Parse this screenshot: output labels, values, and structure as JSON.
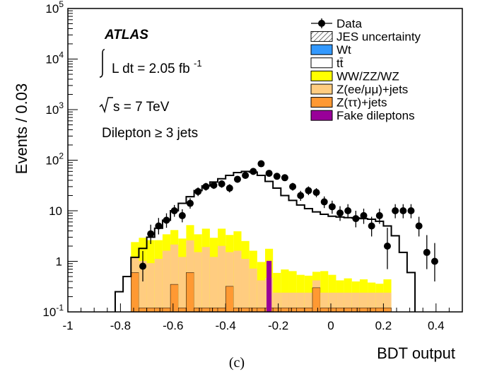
{
  "chart_data": {
    "type": "bar",
    "xlabel": "BDT output",
    "ylabel": "Events / 0.03",
    "yscale": "log",
    "xlim": [
      -1,
      0.5
    ],
    "ylim": [
      0.1,
      100000
    ],
    "xticks": [
      "-1",
      "-0.8",
      "-0.6",
      "-0.4",
      "-0.2",
      "0",
      "0.2",
      "0.4"
    ],
    "yticks": [
      {
        "base": "10",
        "exp": "-1"
      },
      {
        "base": "1",
        "exp": ""
      },
      {
        "base": "10",
        "exp": ""
      },
      {
        "base": "10",
        "exp": "2"
      },
      {
        "base": "10",
        "exp": "3"
      },
      {
        "base": "10",
        "exp": "4"
      },
      {
        "base": "10",
        "exp": "5"
      }
    ],
    "annotations": {
      "experiment": "ATLAS",
      "lumi_label": "L dt = 2.05 fb",
      "lumi_exp": "-1",
      "energy": "s = 7 TeV",
      "selection": "Dilepton ≥ 3 jets",
      "panel": "(c)"
    },
    "legend": {
      "position": "top-right",
      "entries": [
        {
          "key": "data",
          "label": "Data",
          "style": "marker",
          "color": "#000000"
        },
        {
          "key": "jes",
          "label": "JES uncertainty",
          "style": "hatch",
          "color": "#000000"
        },
        {
          "key": "wt",
          "label": "Wt",
          "style": "fill",
          "color": "#3399ff"
        },
        {
          "key": "tt",
          "label": "tt̄",
          "style": "fill",
          "color": "#ffffff"
        },
        {
          "key": "diboson",
          "label": "WW/ZZ/WZ",
          "style": "fill",
          "color": "#ffff00"
        },
        {
          "key": "zll",
          "label": "Z(ee/μμ)+jets",
          "style": "fill",
          "color": "#ffcc80"
        },
        {
          "key": "ztautau",
          "label": "Z(ττ)+jets",
          "style": "fill",
          "color": "#ff9933"
        },
        {
          "key": "fake",
          "label": "Fake dileptons",
          "style": "fill",
          "color": "#990099"
        }
      ]
    },
    "bin_width": 0.03,
    "bins_low_edges": [
      -0.82,
      -0.79,
      -0.76,
      -0.73,
      -0.7,
      -0.67,
      -0.64,
      -0.61,
      -0.58,
      -0.55,
      -0.52,
      -0.49,
      -0.46,
      -0.43,
      -0.4,
      -0.37,
      -0.34,
      -0.31,
      -0.28,
      -0.25,
      -0.22,
      -0.19,
      -0.16,
      -0.13,
      -0.1,
      -0.07,
      -0.04,
      -0.01,
      0.02,
      0.05,
      0.08,
      0.11,
      0.14,
      0.17,
      0.2,
      0.23,
      0.26,
      0.29
    ],
    "series": [
      {
        "key": "total",
        "name": "tt̄",
        "values": [
          0.25,
          0.5,
          1.2,
          1.8,
          3.0,
          4.5,
          6.5,
          10,
          14,
          19,
          25,
          31,
          37,
          43,
          50,
          57,
          60,
          58,
          50,
          38,
          28,
          20,
          16,
          13,
          11,
          9.5,
          8.5,
          7.8,
          7.5,
          7.3,
          7.2,
          7.0,
          6.8,
          6.2,
          5.0,
          3.2,
          1.5,
          0.6
        ]
      },
      {
        "key": "diboson",
        "name": "WW/ZZ/WZ",
        "values": [
          0,
          0,
          1.2,
          1.9,
          1.7,
          1.5,
          1.8,
          2.0,
          1.6,
          2.6,
          1.9,
          2.5,
          1.7,
          2.4,
          1.8,
          2.3,
          1.4,
          0.9,
          0.55,
          0.75,
          0.35,
          0.45,
          0.4,
          0.3,
          0.28,
          0.2,
          0.4,
          0.3,
          0.18,
          0.22,
          0.16,
          0.2,
          0.14,
          0.12,
          0.2,
          0,
          0,
          0
        ]
      },
      {
        "key": "zll",
        "name": "Z(ee/μμ)+jets",
        "values": [
          0,
          0,
          0.6,
          0.9,
          0.8,
          1.0,
          1.5,
          1.8,
          1.1,
          2.0,
          1.4,
          1.8,
          1.1,
          1.9,
          1.2,
          1.5,
          1.0,
          0.6,
          0.3,
          0.35,
          0.12,
          0.12,
          0.12,
          0.12,
          0.12,
          0.12,
          0.12,
          0.12,
          0.12,
          0.12,
          0.12,
          0.12,
          0.12,
          0.12,
          0.12,
          0,
          0,
          0
        ]
      },
      {
        "key": "ztautau",
        "name": "Z(ττ)+jets",
        "values": [
          0,
          0,
          0.6,
          0.12,
          0.12,
          0.12,
          0.12,
          0.35,
          0.12,
          0.6,
          0.12,
          0.12,
          0.12,
          0.12,
          0.32,
          0.12,
          0.12,
          0.12,
          0.12,
          0.12,
          0.12,
          0.12,
          0.12,
          0.12,
          0.12,
          0.3,
          0.12,
          0.12,
          0.12,
          0.12,
          0.12,
          0.12,
          0.12,
          0.12,
          0.12,
          0,
          0,
          0
        ]
      },
      {
        "key": "fake",
        "name": "Fake dileptons",
        "values": [
          0,
          0,
          0,
          0,
          0,
          0,
          0,
          0,
          0,
          0,
          0,
          0,
          0,
          0,
          0,
          0,
          0,
          0,
          0,
          0.55,
          0,
          0,
          0,
          0,
          0,
          0,
          0,
          0,
          0,
          0,
          0,
          0,
          0,
          0,
          0,
          0,
          0,
          0
        ]
      },
      {
        "key": "data",
        "name": "Data",
        "points": [
          {
            "x": -0.715,
            "y": 0.8,
            "lo": 0.4,
            "hi": 1.6
          },
          {
            "x": -0.685,
            "y": 3.5,
            "lo": 2.2,
            "hi": 5.3
          },
          {
            "x": -0.655,
            "y": 5.0,
            "lo": 3.4,
            "hi": 7.2
          },
          {
            "x": -0.625,
            "y": 6.5,
            "lo": 4.6,
            "hi": 8.9
          },
          {
            "x": -0.595,
            "y": 10,
            "lo": 7.6,
            "hi": 13
          },
          {
            "x": -0.565,
            "y": 8,
            "lo": 5.9,
            "hi": 10.7
          },
          {
            "x": -0.535,
            "y": 14,
            "lo": 11,
            "hi": 17.7
          },
          {
            "x": -0.505,
            "y": 24,
            "lo": 19.5,
            "hi": 29
          },
          {
            "x": -0.475,
            "y": 30,
            "lo": 25,
            "hi": 35.6
          },
          {
            "x": -0.445,
            "y": 32,
            "lo": 27,
            "hi": 37.7
          },
          {
            "x": -0.415,
            "y": 34,
            "lo": 28.5,
            "hi": 40
          },
          {
            "x": -0.385,
            "y": 28,
            "lo": 23,
            "hi": 33.5
          },
          {
            "x": -0.355,
            "y": 42,
            "lo": 36,
            "hi": 48.6
          },
          {
            "x": -0.325,
            "y": 50,
            "lo": 43.5,
            "hi": 57
          },
          {
            "x": -0.295,
            "y": 60,
            "lo": 52.5,
            "hi": 68
          },
          {
            "x": -0.265,
            "y": 85,
            "lo": 76,
            "hi": 94.5
          },
          {
            "x": -0.235,
            "y": 55,
            "lo": 48,
            "hi": 62.5
          },
          {
            "x": -0.205,
            "y": 48,
            "lo": 41.5,
            "hi": 55
          },
          {
            "x": -0.175,
            "y": 45,
            "lo": 39,
            "hi": 51.8
          },
          {
            "x": -0.145,
            "y": 30,
            "lo": 25,
            "hi": 35.6
          },
          {
            "x": -0.115,
            "y": 20,
            "lo": 15.7,
            "hi": 24.8
          },
          {
            "x": -0.085,
            "y": 25,
            "lo": 20.3,
            "hi": 30.3
          },
          {
            "x": -0.055,
            "y": 23,
            "lo": 18.5,
            "hi": 28
          },
          {
            "x": -0.025,
            "y": 15,
            "lo": 11.3,
            "hi": 19.2
          },
          {
            "x": 0.005,
            "y": 12,
            "lo": 8.7,
            "hi": 15.8
          },
          {
            "x": 0.035,
            "y": 9,
            "lo": 6.3,
            "hi": 12.3
          },
          {
            "x": 0.065,
            "y": 10,
            "lo": 7.1,
            "hi": 13.5
          },
          {
            "x": 0.095,
            "y": 7,
            "lo": 4.7,
            "hi": 10
          },
          {
            "x": 0.125,
            "y": 8,
            "lo": 5.5,
            "hi": 11
          },
          {
            "x": 0.155,
            "y": 5,
            "lo": 3.1,
            "hi": 7.6
          },
          {
            "x": 0.185,
            "y": 8,
            "lo": 5.5,
            "hi": 11
          },
          {
            "x": 0.215,
            "y": 2,
            "lo": 0.7,
            "hi": 4.6
          },
          {
            "x": 0.245,
            "y": 10,
            "lo": 7.1,
            "hi": 13.5
          },
          {
            "x": 0.275,
            "y": 10,
            "lo": 7.1,
            "hi": 13.5
          },
          {
            "x": 0.305,
            "y": 10,
            "lo": 7.1,
            "hi": 13.5
          },
          {
            "x": 0.335,
            "y": 5,
            "lo": 3.1,
            "hi": 7.6
          },
          {
            "x": 0.365,
            "y": 1.5,
            "lo": 0.7,
            "hi": 3.3
          },
          {
            "x": 0.395,
            "y": 1.0,
            "lo": 0.4,
            "hi": 2.3
          }
        ]
      }
    ]
  }
}
